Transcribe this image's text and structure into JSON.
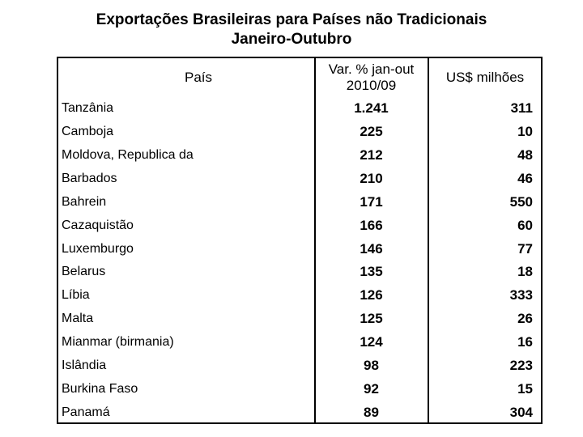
{
  "title": {
    "line1": "Exportações Brasileiras para Países não Tradicionais",
    "line2": "Janeiro-Outubro"
  },
  "table": {
    "headers": {
      "country": "País",
      "var_line1": "Var. % jan-out",
      "var_line2": "2010/09",
      "usd": "US$ milhões"
    },
    "rows": [
      {
        "country": "Tanzânia",
        "var": "1.241",
        "usd": "311"
      },
      {
        "country": "Camboja",
        "var": "225",
        "usd": "10"
      },
      {
        "country": "Moldova, Republica da",
        "var": "212",
        "usd": "48"
      },
      {
        "country": "Barbados",
        "var": "210",
        "usd": "46"
      },
      {
        "country": "Bahrein",
        "var": "171",
        "usd": "550"
      },
      {
        "country": "Cazaquistão",
        "var": "166",
        "usd": "60"
      },
      {
        "country": "Luxemburgo",
        "var": "146",
        "usd": "77"
      },
      {
        "country": "Belarus",
        "var": "135",
        "usd": "18"
      },
      {
        "country": "Líbia",
        "var": "126",
        "usd": "333"
      },
      {
        "country": "Malta",
        "var": "125",
        "usd": "26"
      },
      {
        "country": "Mianmar (birmania)",
        "var": "124",
        "usd": "16"
      },
      {
        "country": "Islândia",
        "var": "98",
        "usd": "223"
      },
      {
        "country": "Burkina Faso",
        "var": "92",
        "usd": "15"
      },
      {
        "country": "Panamá",
        "var": "89",
        "usd": "304"
      }
    ]
  }
}
